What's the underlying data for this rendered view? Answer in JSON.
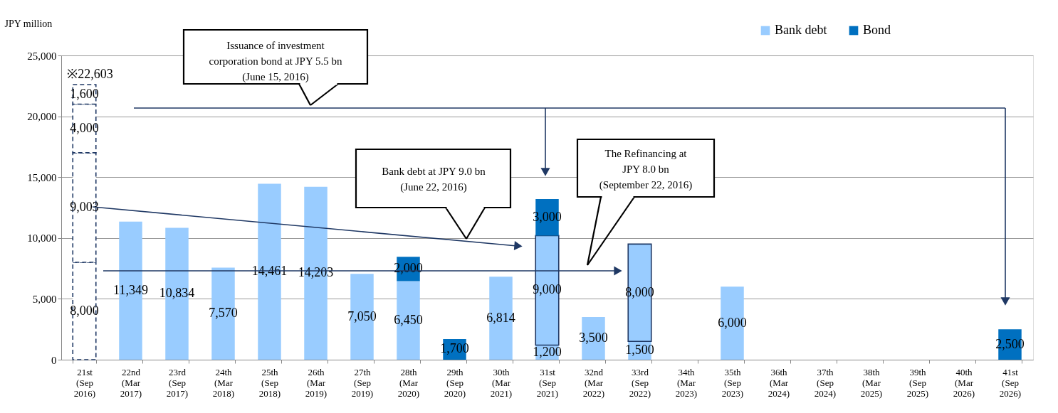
{
  "chart_data": {
    "type": "bar",
    "stacked": true,
    "ylabel": "JPY million",
    "categories": [
      "21st (Sep 2016)",
      "22nd (Mar 2017)",
      "23rd (Sep 2017)",
      "24th (Mar 2018)",
      "25th (Sep 2018)",
      "26th (Mar 2019)",
      "27th (Sep 2019)",
      "28th (Mar 2020)",
      "29th (Sep 2020)",
      "30th (Mar 2021)",
      "31st (Sep 2021)",
      "32nd (Mar 2022)",
      "33rd (Sep 2022)",
      "34th (Mar 2023)",
      "35th (Sep 2023)",
      "36th (Mar 2024)",
      "37th (Sep 2024)",
      "38th (Mar 2025)",
      "39th (Sep 2025)",
      "40th (Mar 2026)",
      "41st (Sep 2026)"
    ],
    "series": [
      {
        "name": "Bank debt",
        "color": "#99ccff",
        "values": [
          null,
          11349,
          10834,
          7570,
          14461,
          14203,
          7050,
          6450,
          null,
          6814,
          1200,
          3500,
          1500,
          null,
          6000,
          null,
          null,
          null,
          null,
          null,
          null
        ],
        "value_labels": [
          null,
          "11,349",
          "10,834",
          "7,570",
          "14,461",
          "14,203",
          "7,050",
          "6,450",
          null,
          "6,814",
          "1,200",
          "3,500",
          "1,500",
          null,
          "6,000",
          null,
          null,
          null,
          null,
          null,
          null
        ]
      },
      {
        "color": "#99ccff",
        "line_style": "solid",
        "values": [
          null,
          null,
          null,
          null,
          null,
          null,
          null,
          null,
          null,
          null,
          9000,
          null,
          8000,
          null,
          null,
          null,
          null,
          null,
          null,
          null,
          null
        ],
        "value_labels": [
          null,
          null,
          null,
          null,
          null,
          null,
          null,
          null,
          null,
          null,
          "9,000",
          null,
          "8,000",
          null,
          null,
          null,
          null,
          null,
          null,
          null,
          null
        ]
      },
      {
        "name": "Bond",
        "color": "#0070c0",
        "values": [
          null,
          null,
          null,
          null,
          null,
          null,
          null,
          2000,
          1700,
          null,
          3000,
          null,
          null,
          null,
          null,
          null,
          null,
          null,
          null,
          null,
          2500
        ],
        "value_labels": [
          null,
          null,
          null,
          null,
          null,
          null,
          null,
          "2,000",
          "1,700",
          null,
          "3,000",
          null,
          null,
          null,
          null,
          null,
          null,
          null,
          null,
          null,
          "2,500"
        ]
      },
      {
        "color": "#ffffff",
        "line_style": "dashed",
        "values": [
          8000,
          null,
          null,
          null,
          null,
          null,
          null,
          null,
          null,
          null,
          null,
          null,
          null,
          null,
          null,
          null,
          null,
          null,
          null,
          null,
          null
        ],
        "value_labels": [
          "8,000",
          null,
          null,
          null,
          null,
          null,
          null,
          null,
          null,
          null,
          null,
          null,
          null,
          null,
          null,
          null,
          null,
          null,
          null,
          null,
          null
        ]
      },
      {
        "color": "#ffffff",
        "line_style": "dashed",
        "values": [
          9003,
          null,
          null,
          null,
          null,
          null,
          null,
          null,
          null,
          null,
          null,
          null,
          null,
          null,
          null,
          null,
          null,
          null,
          null,
          null,
          null
        ],
        "value_labels": [
          "9,003",
          null,
          null,
          null,
          null,
          null,
          null,
          null,
          null,
          null,
          null,
          null,
          null,
          null,
          null,
          null,
          null,
          null,
          null,
          null,
          null
        ]
      },
      {
        "color": "#ffffff",
        "line_style": "dashed",
        "values": [
          4000,
          null,
          null,
          null,
          null,
          null,
          null,
          null,
          null,
          null,
          null,
          null,
          null,
          null,
          null,
          null,
          null,
          null,
          null,
          null,
          null
        ],
        "value_labels": [
          "4,000",
          null,
          null,
          null,
          null,
          null,
          null,
          null,
          null,
          null,
          null,
          null,
          null,
          null,
          null,
          null,
          null,
          null,
          null,
          null,
          null
        ]
      },
      {
        "color": "#ffffff",
        "line_style": "dashed",
        "values": [
          1600,
          null,
          null,
          null,
          null,
          null,
          null,
          null,
          null,
          null,
          null,
          null,
          null,
          null,
          null,
          null,
          null,
          null,
          null,
          null,
          null
        ],
        "value_labels": [
          "1,600",
          null,
          null,
          null,
          null,
          null,
          null,
          null,
          null,
          null,
          null,
          null,
          null,
          null,
          null,
          null,
          null,
          null,
          null,
          null,
          null
        ]
      }
    ],
    "totals": [
      "※22,603",
      null,
      null,
      null,
      null,
      null,
      null,
      null,
      null,
      null,
      null,
      null,
      null,
      null,
      null,
      null,
      null,
      null,
      null,
      null,
      null
    ],
    "ylim": [
      0,
      25000
    ],
    "yticks": [
      {
        "value": 0,
        "label": "0"
      },
      {
        "value": 5000,
        "label": "5,000"
      },
      {
        "value": 10000,
        "label": "10,000"
      },
      {
        "value": 15000,
        "label": "15,000"
      },
      {
        "value": 20000,
        "label": "20,000"
      },
      {
        "value": 25000,
        "label": "25,000"
      }
    ],
    "grid": "y",
    "legend": "top right",
    "annotations": [
      "Issuance of investment\ncorporation bond at JPY 5.5 bn\n(June 15, 2016)",
      "Bank debt at JPY 9.0 bn\n(June 22, 2016)",
      "The Refinancing at\nJPY 8.0 bn\n(September 22, 2016)"
    ]
  }
}
